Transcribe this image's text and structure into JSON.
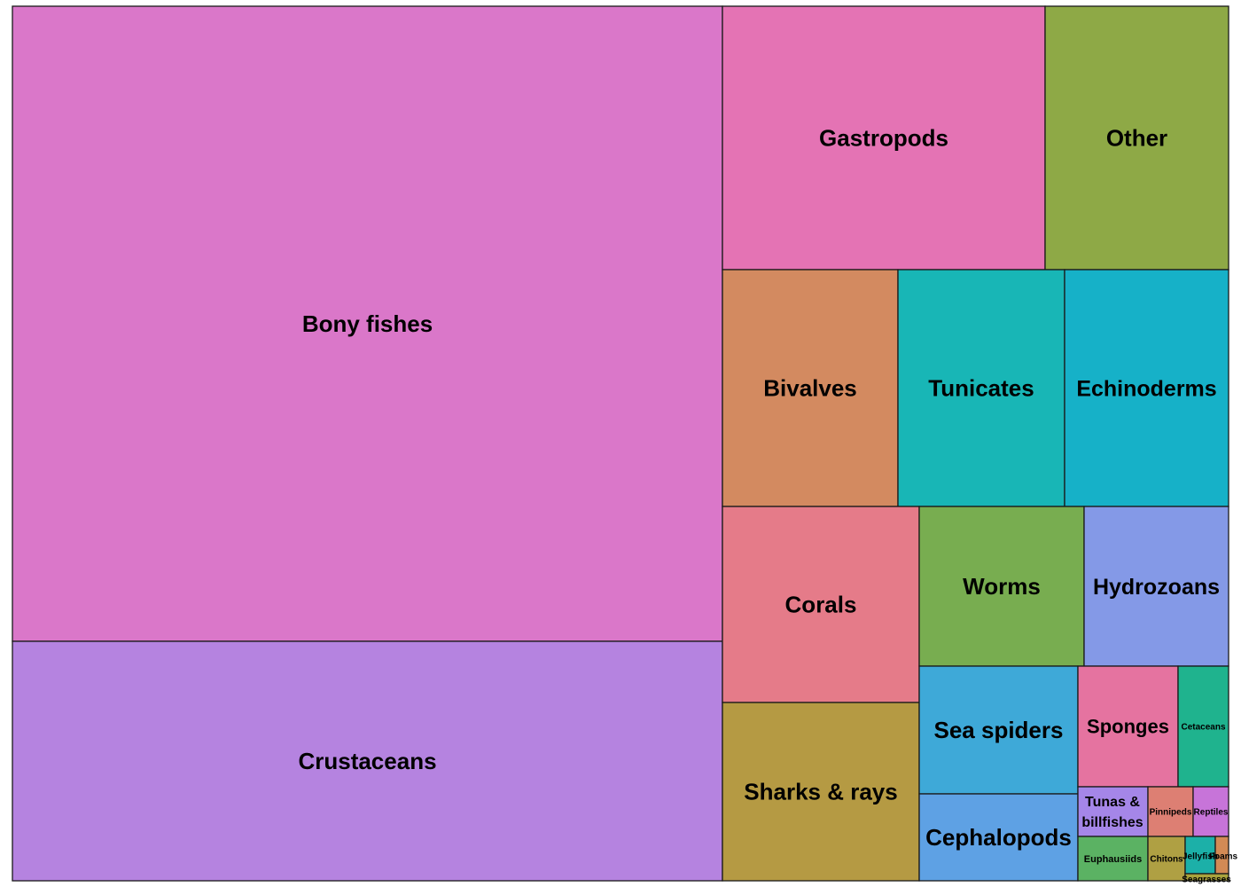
{
  "chart_data": {
    "type": "treemap",
    "items": [
      {
        "label": "Bony fishes",
        "value": 573,
        "color": "#da77c9"
      },
      {
        "label": "Crustaceans",
        "value": 216,
        "color": "#b583e0"
      },
      {
        "label": "Gastropods",
        "value": 108,
        "color": "#e473b4"
      },
      {
        "label": "Other",
        "value": 62,
        "color": "#8ea946"
      },
      {
        "label": "Bivalves",
        "value": 53,
        "color": "#d38a60"
      },
      {
        "label": "Tunicates",
        "value": 50,
        "color": "#18b6b6"
      },
      {
        "label": "Echinoderms",
        "value": 55,
        "color": "#16b1c8"
      },
      {
        "label": "Corals",
        "value": 49,
        "color": "#e57b89"
      },
      {
        "label": "Sharks & rays",
        "value": 45,
        "color": "#b59a43"
      },
      {
        "label": "Worms",
        "value": 33,
        "color": "#78ad50"
      },
      {
        "label": "Hydrozoans",
        "value": 32,
        "color": "#8499e7"
      },
      {
        "label": "Sea spiders",
        "value": 26,
        "color": "#3ea9d8"
      },
      {
        "label": "Cephalopods",
        "value": 18,
        "color": "#5ea1e4"
      },
      {
        "label": "Sponges",
        "value": 15,
        "color": "#e573a0"
      },
      {
        "label": "Cetaceans",
        "value": 8,
        "color": "#1fb38e"
      },
      {
        "label": "Tunas & billfishes",
        "value": 5,
        "color": "#a586e8"
      },
      {
        "label": "Pinnipeds",
        "value": 3,
        "color": "#dd7f73"
      },
      {
        "label": "Reptiles",
        "value": 3,
        "color": "#c774d9"
      },
      {
        "label": "Euphausiids",
        "value": 4,
        "color": "#5bb263"
      },
      {
        "label": "Chitons",
        "value": 2,
        "color": "#afa043"
      },
      {
        "label": "Jellyfish",
        "value": 1.4,
        "color": "#1cb0a8"
      },
      {
        "label": "Foams",
        "value": 0.4,
        "color": "#d28a55"
      },
      {
        "label": "Seagrasses",
        "value": 0.2,
        "color": "#a9a33d"
      }
    ]
  }
}
